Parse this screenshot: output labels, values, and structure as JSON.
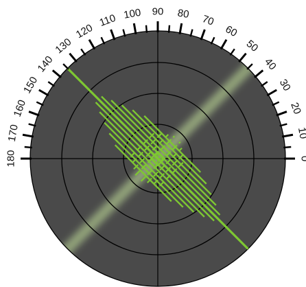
{
  "diagram": {
    "type": "polar-angle-scale",
    "angle_labels": [
      "0",
      "10",
      "20",
      "30",
      "40",
      "50",
      "60",
      "70",
      "80",
      "90",
      "100",
      "110",
      "120",
      "130",
      "140",
      "150",
      "160",
      "170",
      "180"
    ],
    "label_step_degrees": 10,
    "minor_tick_step_degrees": 5,
    "ring_count": 4,
    "crosshair": true,
    "highlighted_line_angle_degrees": 135,
    "faint_band_angle_degrees": 45,
    "colors": {
      "disk": "#4a4a4a",
      "grid": "#000000",
      "ticks": "#000000",
      "highlight": "#7ec832",
      "faint_band": "#a8bf8a",
      "labels": "#111111"
    }
  }
}
